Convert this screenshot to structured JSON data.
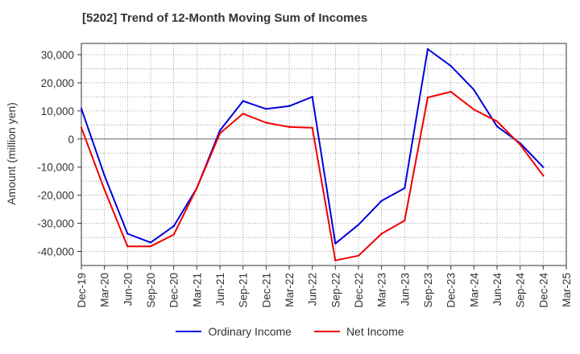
{
  "chart_data": {
    "type": "line",
    "title": "[5202]  Trend of 12-Month Moving Sum of Incomes",
    "xlabel": "",
    "ylabel": "Amount (million yen)",
    "ylim": [
      -45000,
      34000
    ],
    "yticks": [
      30000,
      20000,
      10000,
      0,
      -10000,
      -20000,
      -30000,
      -40000
    ],
    "ytick_labels": [
      "30,000",
      "20,000",
      "10,000",
      "0",
      "-10,000",
      "-20,000",
      "-30,000",
      "-40,000"
    ],
    "categories": [
      "Dec-19",
      "Mar-20",
      "Jun-20",
      "Sep-20",
      "Dec-20",
      "Mar-21",
      "Jun-21",
      "Sep-21",
      "Dec-21",
      "Mar-22",
      "Jun-22",
      "Sep-22",
      "Dec-22",
      "Mar-23",
      "Jun-23",
      "Sep-23",
      "Dec-23",
      "Mar-24",
      "Jun-24",
      "Sep-24",
      "Dec-24",
      "Mar-25"
    ],
    "grid": true,
    "legend_position": "bottom",
    "series": [
      {
        "name": "Ordinary Income",
        "color": "#0000dd",
        "values": [
          10800,
          -13000,
          -33700,
          -36800,
          -31000,
          -17500,
          3000,
          13500,
          10700,
          11700,
          15000,
          -37200,
          -30500,
          -22000,
          -17500,
          32000,
          26000,
          17500,
          4500,
          -1500,
          -10000,
          null
        ]
      },
      {
        "name": "Net Income",
        "color": "#ee0000",
        "values": [
          4000,
          -18000,
          -38200,
          -38200,
          -34000,
          -17500,
          2000,
          9000,
          5800,
          4300,
          4000,
          -43200,
          -41500,
          -33700,
          -29000,
          14800,
          16800,
          10500,
          6300,
          -2000,
          -13000,
          null
        ]
      }
    ]
  }
}
